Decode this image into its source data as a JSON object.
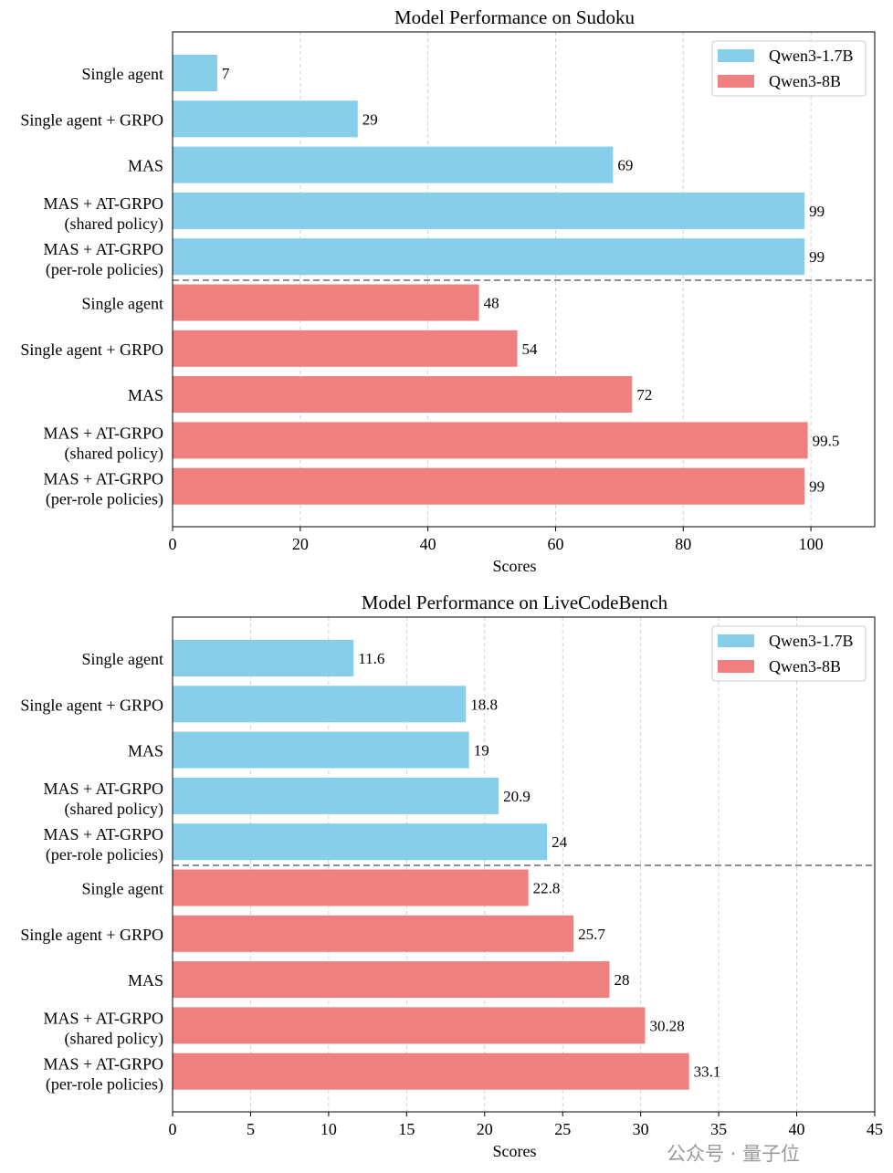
{
  "colors": {
    "Qwen3-1.7B": "#87CEEB",
    "Qwen3-8B": "#F08080",
    "separator": "#808080",
    "grid": "#c8c8c8"
  },
  "watermark": "公众号 · 量子位",
  "chart_data": [
    {
      "type": "bar",
      "orientation": "horizontal",
      "title": "Model Performance on Sudoku",
      "xlabel": "Scores",
      "ylabel": "",
      "xlim": [
        0,
        110
      ],
      "xticks": [
        0,
        20,
        40,
        60,
        80,
        100
      ],
      "grid": "x dashed",
      "legend": {
        "placement": "top-right",
        "entries": [
          "Qwen3-1.7B",
          "Qwen3-8B"
        ]
      },
      "categories": [
        "Single agent",
        "Single agent + GRPO",
        "MAS",
        "MAS + AT-GRPO\n(shared policy)",
        "MAS + AT-GRPO\n(per-role policies)"
      ],
      "series": [
        {
          "name": "Qwen3-1.7B",
          "values": [
            7,
            29,
            69,
            99,
            99
          ],
          "labels": [
            "7",
            "29",
            "69",
            "99",
            "99"
          ]
        },
        {
          "name": "Qwen3-8B",
          "values": [
            48,
            54,
            72,
            99.5,
            99
          ],
          "labels": [
            "48",
            "54",
            "72",
            "99.5",
            "99"
          ]
        }
      ]
    },
    {
      "type": "bar",
      "orientation": "horizontal",
      "title": "Model Performance on LiveCodeBench",
      "xlabel": "Scores",
      "ylabel": "",
      "xlim": [
        0,
        45
      ],
      "xticks": [
        0,
        5,
        10,
        15,
        20,
        25,
        30,
        35,
        40,
        45
      ],
      "grid": "x dashed",
      "legend": {
        "placement": "top-right",
        "entries": [
          "Qwen3-1.7B",
          "Qwen3-8B"
        ]
      },
      "categories": [
        "Single agent",
        "Single agent + GRPO",
        "MAS",
        "MAS + AT-GRPO\n(shared policy)",
        "MAS + AT-GRPO\n(per-role policies)"
      ],
      "series": [
        {
          "name": "Qwen3-1.7B",
          "values": [
            11.6,
            18.8,
            19,
            20.9,
            24
          ],
          "labels": [
            "11.6",
            "18.8",
            "19",
            "20.9",
            "24"
          ]
        },
        {
          "name": "Qwen3-8B",
          "values": [
            22.8,
            25.7,
            28,
            30.28,
            33.1
          ],
          "labels": [
            "22.8",
            "25.7",
            "28",
            "30.28",
            "33.1"
          ]
        }
      ]
    }
  ]
}
